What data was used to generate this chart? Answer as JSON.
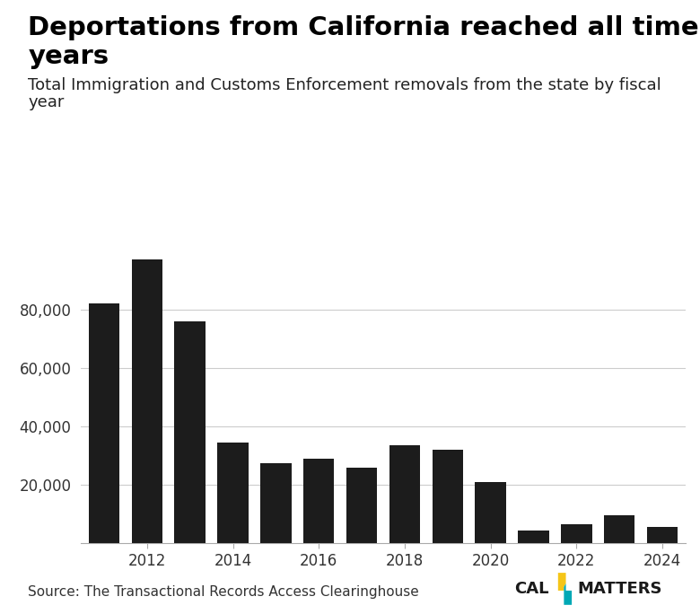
{
  "title_line1": "Deportations from California reached all time lows in recent",
  "title_line2": "years",
  "subtitle_line1": "Total Immigration and Customs Enforcement removals from the state by fiscal",
  "subtitle_line2": "year",
  "source": "Source: The Transactional Records Access Clearinghouse",
  "years": [
    2011,
    2012,
    2013,
    2014,
    2015,
    2016,
    2017,
    2018,
    2019,
    2020,
    2021,
    2022,
    2023,
    2024
  ],
  "values": [
    82000,
    97000,
    76000,
    34500,
    27500,
    29000,
    26000,
    33500,
    32000,
    21000,
    4500,
    6500,
    9500,
    5500
  ],
  "bar_color": "#1c1c1c",
  "background_color": "#ffffff",
  "yticks": [
    20000,
    40000,
    60000,
    80000
  ],
  "ylim": [
    0,
    105000
  ],
  "grid_color": "#cccccc",
  "title_fontsize": 21,
  "subtitle_fontsize": 13,
  "source_fontsize": 11,
  "tick_fontsize": 12,
  "xtick_years": [
    2012,
    2014,
    2016,
    2018,
    2020,
    2022,
    2024
  ],
  "calmatters_color_cal": "#1a1a1a",
  "calmatters_color_matters": "#1a1a1a",
  "logo_yellow": "#f5c518",
  "logo_teal": "#00a8b5"
}
